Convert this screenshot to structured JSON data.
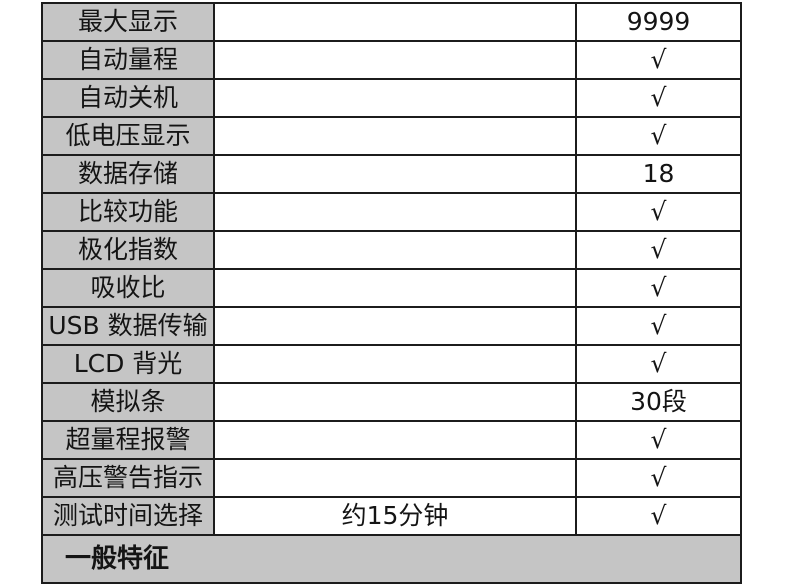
{
  "colors": {
    "label_bg": "#c5c5c5",
    "section_bg": "#c5c5c5",
    "row_bg": "#ffffff",
    "border": "#1c1c1c",
    "text": "#141414"
  },
  "table": {
    "rows": [
      {
        "label": "最大显示",
        "detail": "",
        "value": "9999"
      },
      {
        "label": "自动量程",
        "detail": "",
        "value": "√"
      },
      {
        "label": "自动关机",
        "detail": "",
        "value": "√"
      },
      {
        "label": "低电压显示",
        "detail": "",
        "value": "√"
      },
      {
        "label": "数据存储",
        "detail": "",
        "value": "18"
      },
      {
        "label": "比较功能",
        "detail": "",
        "value": "√"
      },
      {
        "label": "极化指数",
        "detail": "",
        "value": "√"
      },
      {
        "label": "吸收比",
        "detail": "",
        "value": "√"
      },
      {
        "label": "USB 数据传输",
        "detail": "",
        "value": "√"
      },
      {
        "label": "LCD 背光",
        "detail": "",
        "value": "√"
      },
      {
        "label": "模拟条",
        "detail": "",
        "value": "30段"
      },
      {
        "label": "超量程报警",
        "detail": "",
        "value": "√"
      },
      {
        "label": "高压警告指示",
        "detail": "",
        "value": "√"
      },
      {
        "label": "测试时间选择",
        "detail": "约15分钟",
        "value": "√"
      }
    ],
    "section_header": "一般特征"
  }
}
